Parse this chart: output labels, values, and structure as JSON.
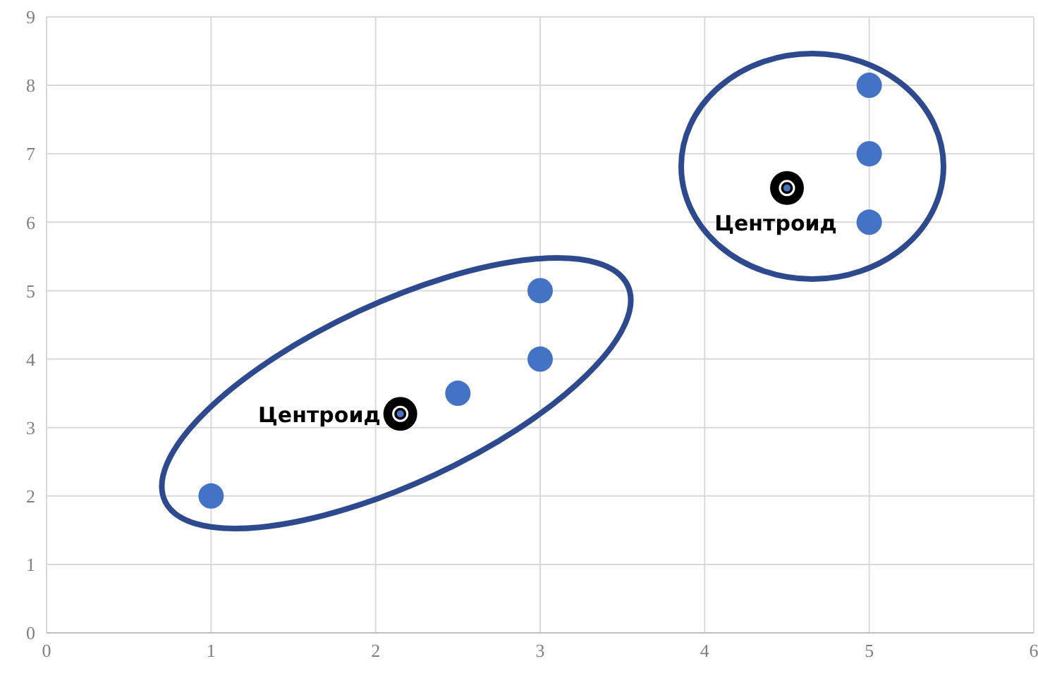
{
  "chart_data": {
    "type": "scatter",
    "xlim": [
      0,
      6
    ],
    "ylim": [
      0,
      9
    ],
    "xticks": [
      0,
      1,
      2,
      3,
      4,
      5,
      6
    ],
    "yticks": [
      0,
      1,
      2,
      3,
      4,
      5,
      6,
      7,
      8,
      9
    ],
    "grid": true,
    "legend": false,
    "marker": "circle",
    "series": [
      {
        "color": "#4472c4",
        "x": [
          1,
          2.5,
          3,
          3,
          5,
          5,
          5
        ],
        "values": [
          2,
          3.5,
          4,
          5,
          6,
          7,
          8
        ]
      },
      {
        "color": "#000000",
        "x": [
          2.15,
          4.5
        ],
        "values": [
          3.2,
          6.5
        ]
      }
    ],
    "annotations": [
      {
        "text": "Центроид",
        "x": 2.15,
        "y": 3.2
      },
      {
        "text": "Центроид",
        "x": 4.5,
        "y": 6.5
      }
    ]
  }
}
